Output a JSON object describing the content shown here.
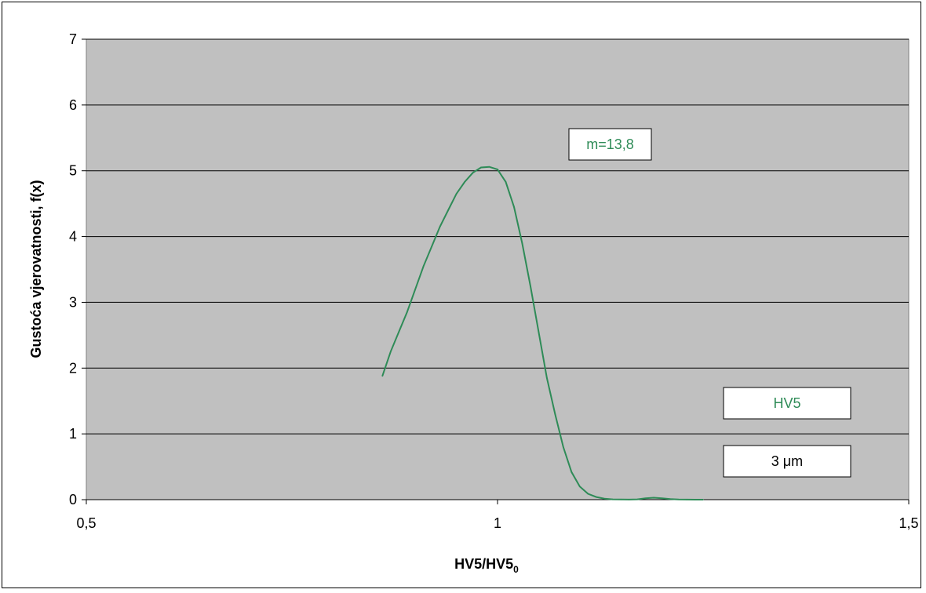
{
  "colors": {
    "plot_background": "#c0c0c0",
    "series": "#2e8b57",
    "gridline": "#000000"
  },
  "chart_data": {
    "type": "line",
    "xlabel": "HV5/HV5",
    "xlabel_subscript": "0",
    "ylabel": "Gustoća vjerovatnosti,  f(x)",
    "xlim": [
      0.5,
      1.5
    ],
    "ylim": [
      0,
      7
    ],
    "x_ticks": [
      0.5,
      1,
      1.5
    ],
    "x_tick_labels": [
      "0,5",
      "1",
      "1,5"
    ],
    "y_ticks": [
      0,
      1,
      2,
      3,
      4,
      5,
      6,
      7
    ],
    "y_tick_labels": [
      "0",
      "1",
      "2",
      "3",
      "4",
      "5",
      "6",
      "7"
    ],
    "grid": "horizontal",
    "annotations": {
      "modulus": "m=13,8",
      "material": "HV5",
      "thickness": "3 μm"
    },
    "series": [
      {
        "x": [
          0.86,
          0.87,
          0.88,
          0.89,
          0.9,
          0.91,
          0.92,
          0.93,
          0.94,
          0.95,
          0.96,
          0.97,
          0.98,
          0.99,
          1.0,
          1.01,
          1.02,
          1.03,
          1.04,
          1.05,
          1.06,
          1.07,
          1.08,
          1.09,
          1.1,
          1.11,
          1.12,
          1.13,
          1.14,
          1.15,
          1.16,
          1.17,
          1.18,
          1.19,
          1.2,
          1.21,
          1.22,
          1.23,
          1.24,
          1.25
        ],
        "values": [
          1.88,
          2.25,
          2.55,
          2.85,
          3.2,
          3.55,
          3.85,
          4.15,
          4.4,
          4.65,
          4.83,
          4.97,
          5.05,
          5.06,
          5.02,
          4.83,
          4.45,
          3.9,
          3.25,
          2.55,
          1.85,
          1.3,
          0.8,
          0.42,
          0.2,
          0.09,
          0.04,
          0.015,
          0.005,
          0.002,
          0.001,
          0.005,
          0.02,
          0.03,
          0.02,
          0.01,
          0.004,
          0.001,
          0.0,
          0.0
        ]
      }
    ]
  }
}
